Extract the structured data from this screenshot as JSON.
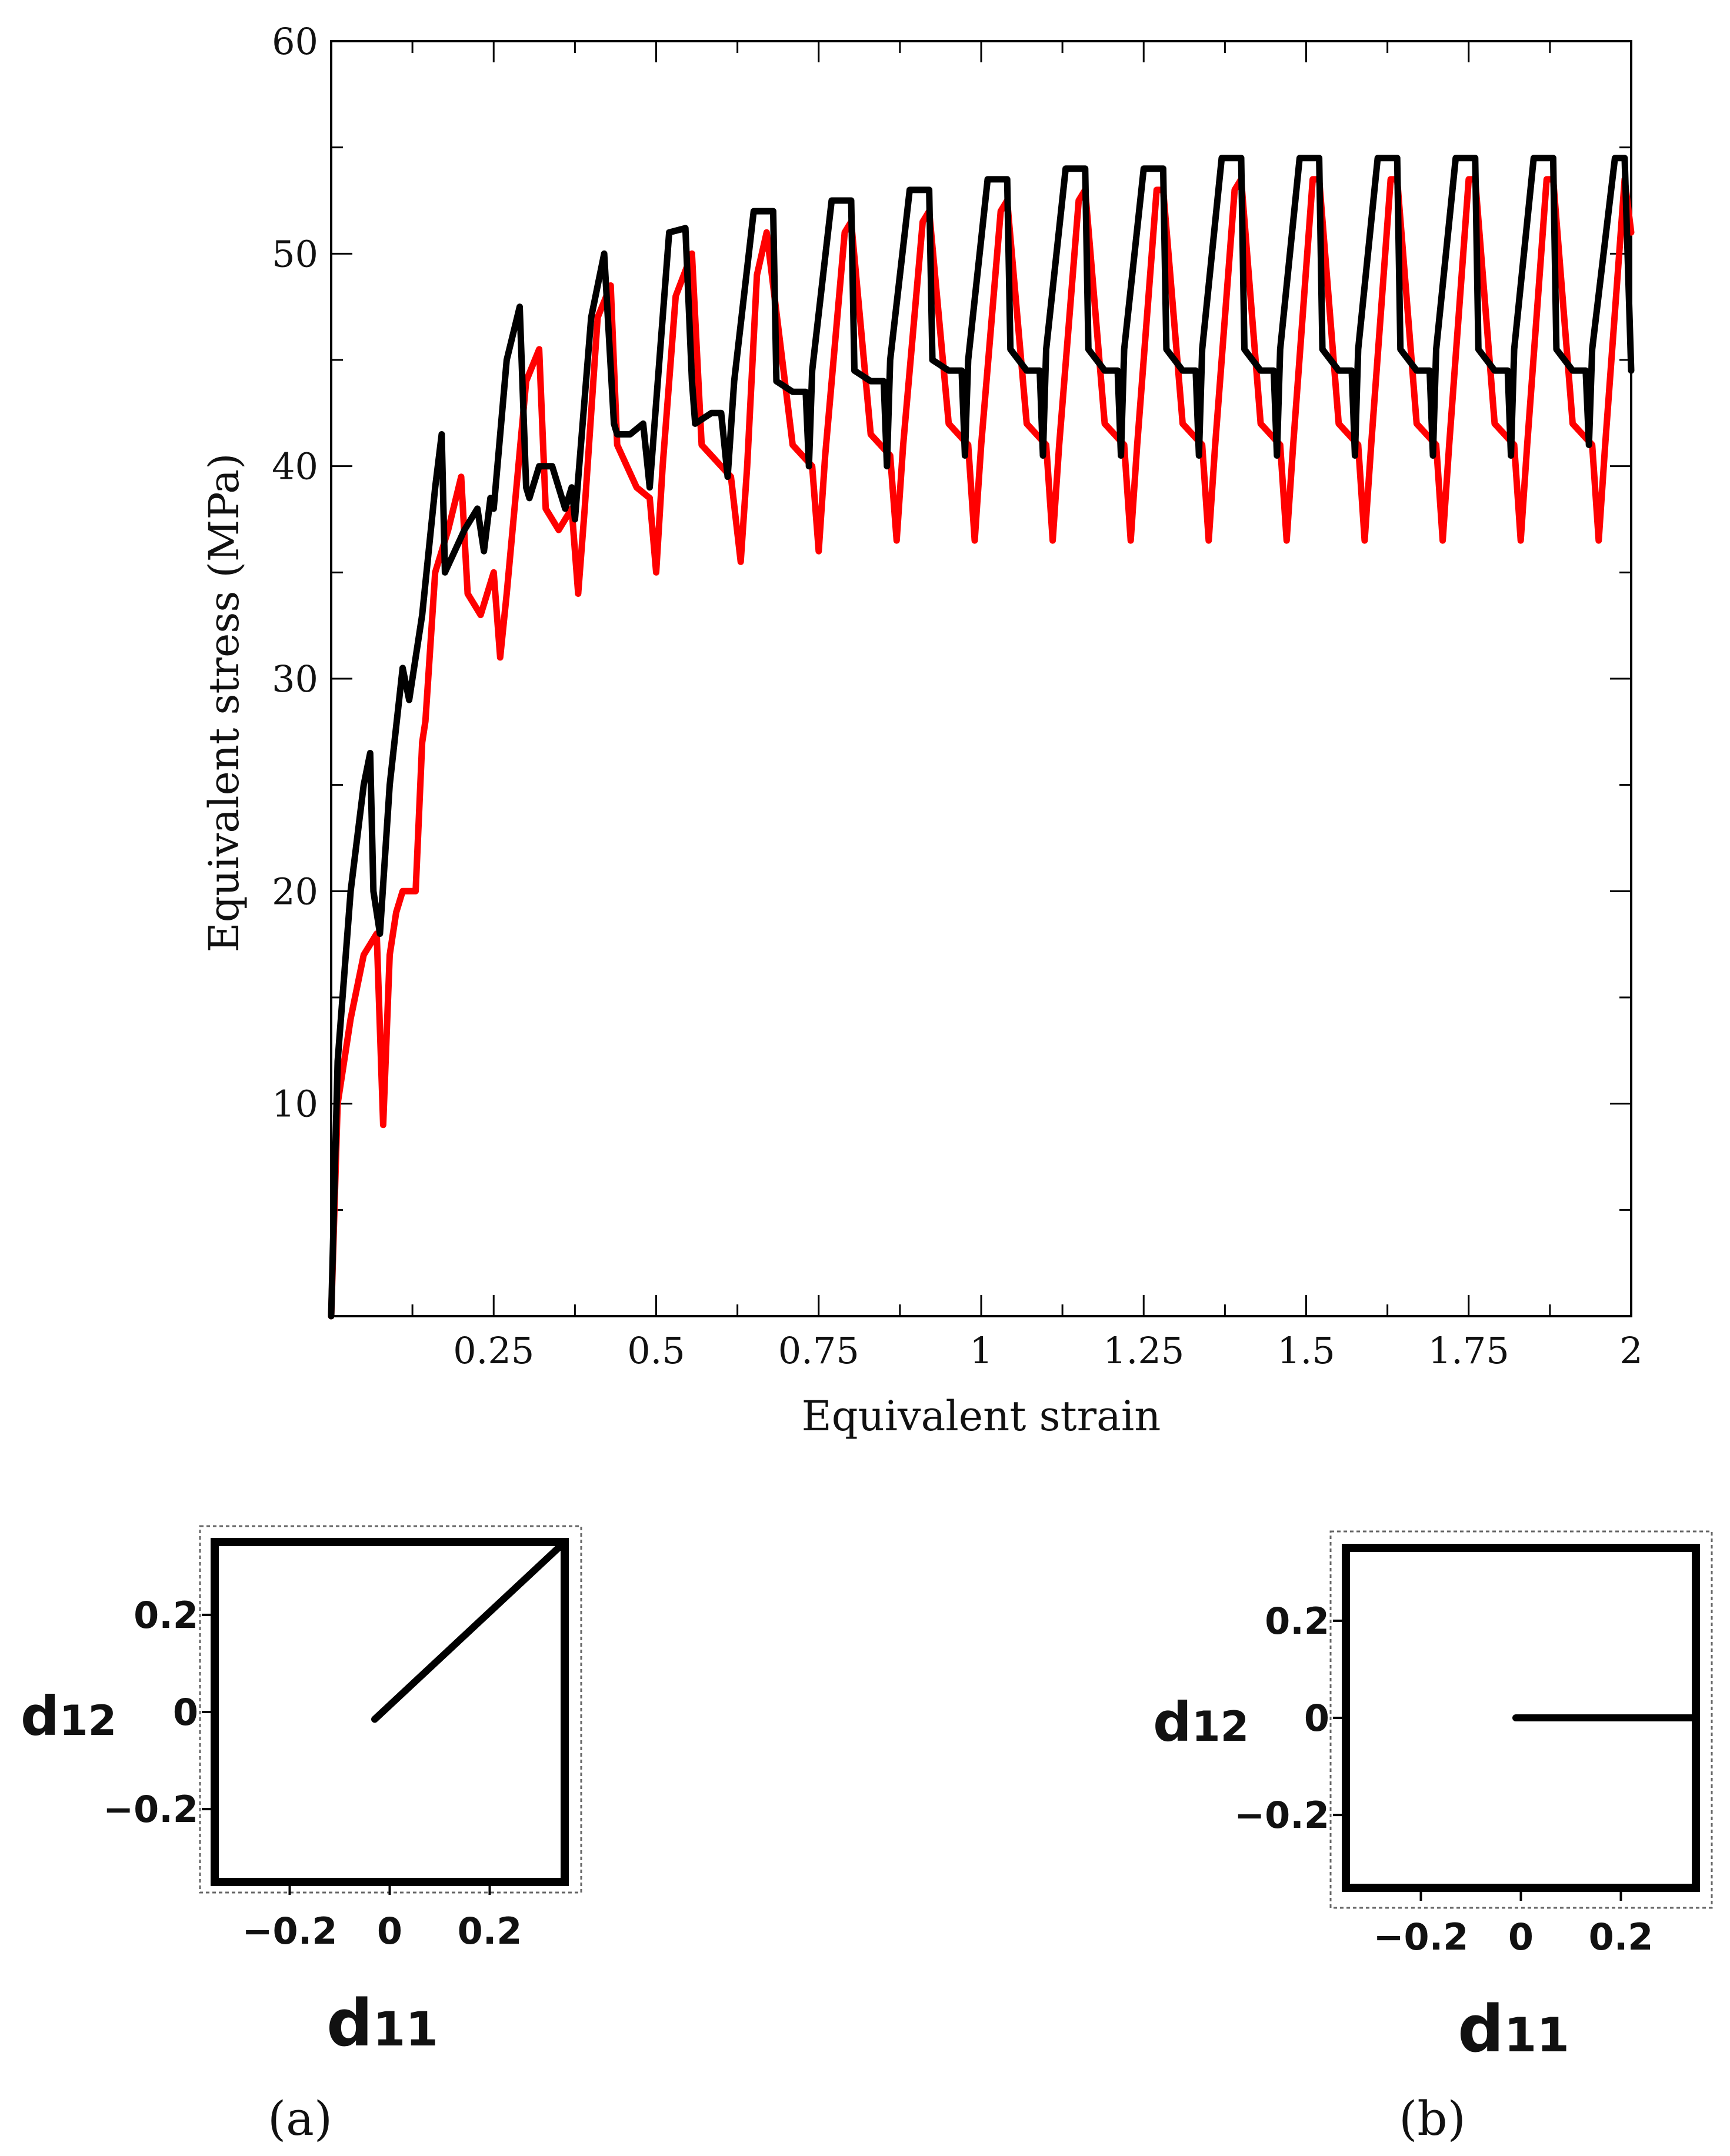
{
  "chart_data": [
    {
      "type": "line",
      "title": "",
      "xlabel": "Equivalent strain",
      "ylabel": "Equivalent stress (MPa)",
      "xlim": [
        0,
        2
      ],
      "ylim": [
        0,
        60
      ],
      "x_ticks": [
        "0.25",
        "0.5",
        "0.75",
        "1",
        "1.25",
        "1.5",
        "1.75",
        "2"
      ],
      "y_ticks": [
        "10",
        "20",
        "30",
        "40",
        "50",
        "60"
      ],
      "grid": false,
      "series": [
        {
          "name": "black curve",
          "color": "#000000",
          "x": [
            0,
            0.01,
            0.03,
            0.05,
            0.06,
            0.065,
            0.075,
            0.09,
            0.11,
            0.12,
            0.125,
            0.14,
            0.16,
            0.17,
            0.175,
            0.19,
            0.205,
            0.225,
            0.235,
            0.245,
            0.25,
            0.27,
            0.29,
            0.3,
            0.305,
            0.32,
            0.34,
            0.36,
            0.37,
            0.375,
            0.4,
            0.42,
            0.435,
            0.44,
            0.46,
            0.48,
            0.49,
            0.5,
            0.52,
            0.545,
            0.555,
            0.56,
            0.585,
            0.6,
            0.61,
            0.62,
            0.65,
            0.68,
            0.685,
            0.71,
            0.73,
            0.735,
            0.74,
            0.77,
            0.8,
            0.805,
            0.83,
            0.85,
            0.855,
            0.86,
            0.89,
            0.92,
            0.925,
            0.95,
            0.97,
            0.975,
            0.98,
            1.01,
            1.04,
            1.045,
            1.07,
            1.09,
            1.095,
            1.1,
            1.13,
            1.16,
            1.165,
            1.19,
            1.21,
            1.215,
            1.22,
            1.25,
            1.28,
            1.285,
            1.31,
            1.33,
            1.335,
            1.34,
            1.37,
            1.4,
            1.405,
            1.43,
            1.45,
            1.455,
            1.46,
            1.49,
            1.52,
            1.525,
            1.55,
            1.57,
            1.575,
            1.58,
            1.61,
            1.64,
            1.645,
            1.67,
            1.69,
            1.695,
            1.7,
            1.73,
            1.76,
            1.765,
            1.79,
            1.81,
            1.815,
            1.82,
            1.85,
            1.88,
            1.885,
            1.91,
            1.93,
            1.935,
            1.94,
            1.975,
            1.99,
            2
          ],
          "y": [
            0,
            12,
            20,
            25,
            26.5,
            20,
            18,
            25,
            30.5,
            29,
            30,
            33,
            39,
            41.5,
            35,
            36,
            37,
            38,
            36,
            38.5,
            38,
            45,
            47.5,
            39,
            38.5,
            40,
            40,
            38,
            39,
            37.5,
            47,
            50,
            42,
            41.5,
            41.5,
            42,
            39,
            43,
            51,
            51.2,
            44,
            42,
            42.5,
            42.5,
            39.5,
            44,
            52,
            52,
            44,
            43.5,
            43.5,
            40,
            44.5,
            52.5,
            52.5,
            44.5,
            44,
            44,
            40,
            45,
            53,
            53,
            45,
            44.5,
            44.5,
            40.5,
            45,
            53.5,
            53.5,
            45.5,
            44.5,
            44.5,
            40.5,
            45.5,
            54,
            54,
            45.5,
            44.5,
            44.5,
            40.5,
            45.5,
            54,
            54,
            45.5,
            44.5,
            44.5,
            40.5,
            45.5,
            54.5,
            54.5,
            45.5,
            44.5,
            44.5,
            40.5,
            45.5,
            54.5,
            54.5,
            45.5,
            44.5,
            44.5,
            40.5,
            45.5,
            54.5,
            54.5,
            45.5,
            44.5,
            44.5,
            40.5,
            45.5,
            54.5,
            54.5,
            45.5,
            44.5,
            44.5,
            40.5,
            45.5,
            54.5,
            54.5,
            45.5,
            44.5,
            44.5,
            41,
            45.5,
            54.5,
            54.5,
            44.5
          ]
        },
        {
          "name": "red curve",
          "color": "#ff0000",
          "x": [
            0,
            0.01,
            0.03,
            0.05,
            0.07,
            0.08,
            0.09,
            0.1,
            0.11,
            0.13,
            0.14,
            0.145,
            0.16,
            0.18,
            0.2,
            0.21,
            0.23,
            0.25,
            0.26,
            0.27,
            0.3,
            0.32,
            0.33,
            0.35,
            0.37,
            0.38,
            0.39,
            0.41,
            0.43,
            0.44,
            0.47,
            0.49,
            0.5,
            0.51,
            0.53,
            0.555,
            0.57,
            0.6,
            0.615,
            0.63,
            0.64,
            0.655,
            0.67,
            0.71,
            0.74,
            0.75,
            0.76,
            0.79,
            0.8,
            0.83,
            0.86,
            0.87,
            0.88,
            0.91,
            0.92,
            0.95,
            0.98,
            0.99,
            1,
            1.03,
            1.04,
            1.07,
            1.1,
            1.11,
            1.12,
            1.15,
            1.16,
            1.19,
            1.22,
            1.23,
            1.24,
            1.27,
            1.28,
            1.31,
            1.34,
            1.35,
            1.36,
            1.39,
            1.4,
            1.43,
            1.46,
            1.47,
            1.48,
            1.51,
            1.52,
            1.55,
            1.58,
            1.59,
            1.6,
            1.63,
            1.64,
            1.67,
            1.7,
            1.71,
            1.72,
            1.75,
            1.76,
            1.79,
            1.82,
            1.83,
            1.84,
            1.87,
            1.88,
            1.91,
            1.94,
            1.95,
            1.96,
            1.99,
            2
          ],
          "y": [
            0,
            10,
            14,
            17,
            18,
            9,
            17,
            19,
            20,
            20,
            27,
            28,
            35,
            37,
            39.5,
            34,
            33,
            35,
            31,
            34,
            44,
            45.5,
            38,
            37,
            38,
            34,
            38,
            47,
            48.5,
            41,
            39,
            38.5,
            35,
            40,
            48,
            50,
            41,
            40,
            39.5,
            35.5,
            40,
            49,
            51,
            41,
            40,
            36,
            40.5,
            51,
            51.5,
            41.5,
            40.5,
            36.5,
            41,
            51.5,
            52,
            42,
            41,
            36.5,
            41,
            52,
            52.5,
            42,
            41,
            36.5,
            41,
            52.5,
            53,
            42,
            41,
            36.5,
            41,
            53,
            53,
            42,
            41,
            36.5,
            41,
            53,
            53.5,
            42,
            41,
            36.5,
            41,
            53.5,
            53.5,
            42,
            41,
            36.5,
            41,
            53.5,
            53.5,
            42,
            41,
            36.5,
            41,
            53.5,
            53.5,
            42,
            41,
            36.5,
            41,
            53.5,
            53.5,
            42,
            41,
            36.5,
            41,
            53.5,
            51
          ]
        }
      ]
    },
    {
      "type": "line",
      "panel": "(a)",
      "xlabel": "d",
      "xlabel_sub": "11",
      "ylabel": "d",
      "ylabel_sub": "12",
      "xlim": [
        -0.35,
        0.35
      ],
      "ylim": [
        -0.35,
        0.35
      ],
      "x_ticks": [
        "−0.2",
        "0",
        "0.2"
      ],
      "y_ticks": [
        "0.2",
        "0",
        "−0.2"
      ],
      "series": [
        {
          "name": "path",
          "color": "#000000",
          "x": [
            -0.03,
            0.35
          ],
          "y": [
            -0.015,
            0.35
          ]
        }
      ]
    },
    {
      "type": "line",
      "panel": "(b)",
      "xlabel": "d",
      "xlabel_sub": "11",
      "ylabel": "d",
      "ylabel_sub": "12",
      "xlim": [
        -0.35,
        0.35
      ],
      "ylim": [
        -0.35,
        0.35
      ],
      "x_ticks": [
        "−0.2",
        "0",
        "0.2"
      ],
      "y_ticks": [
        "0.2",
        "0",
        "−0.2"
      ],
      "series": [
        {
          "name": "path",
          "color": "#000000",
          "x": [
            -0.01,
            0.35
          ],
          "y": [
            0,
            0
          ]
        }
      ]
    }
  ]
}
